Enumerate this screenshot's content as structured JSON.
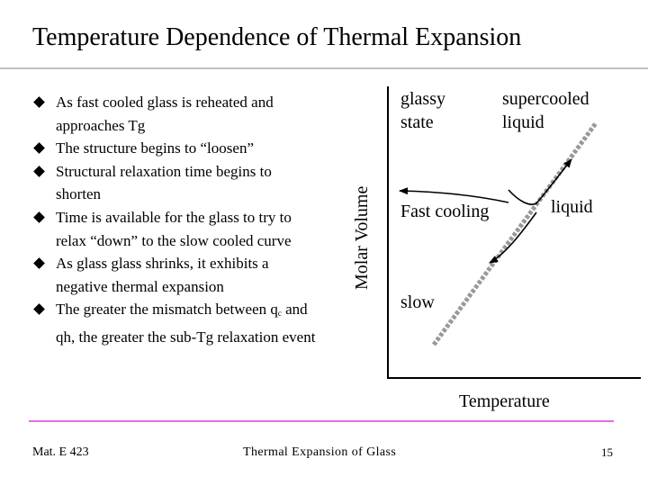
{
  "slide": {
    "title": "Temperature Dependence of Thermal Expansion",
    "bullets": [
      {
        "text": "As fast cooled glass is reheated and approaches Tg"
      },
      {
        "text": "The structure begins to “loosen”"
      },
      {
        "text": "Structural relaxation time begins to shorten"
      },
      {
        "text": "Time is available for the glass to try to relax “down” to the slow cooled curve"
      },
      {
        "text": "As glass glass shrinks, it exhibits a negative thermal expansion"
      },
      {
        "pre": "The greater the mismatch between q",
        "sub": "c",
        "post": " and qh, the greater the sub-Tg relaxation event"
      }
    ]
  },
  "diagram": {
    "y_axis_label": "Molar Volume",
    "x_axis_label": "Temperature",
    "labels": {
      "glassy_state_line1": "glassy",
      "glassy_state_line2": "state",
      "supercooled_line1": "supercooled",
      "supercooled_line2": "liquid",
      "fast_cooling": "Fast cooling",
      "liquid": "liquid",
      "slow": "slow"
    },
    "colors": {
      "label_text": "#cc0000",
      "liquid_line": "#999999",
      "axis": "#000000"
    }
  },
  "footer": {
    "course": "Mat. E 423",
    "topic": "Thermal Expansion of Glass",
    "page": "15"
  },
  "theme": {
    "title_rule_color": "#c0c0c0",
    "footer_rule_color": "#e070e0"
  }
}
